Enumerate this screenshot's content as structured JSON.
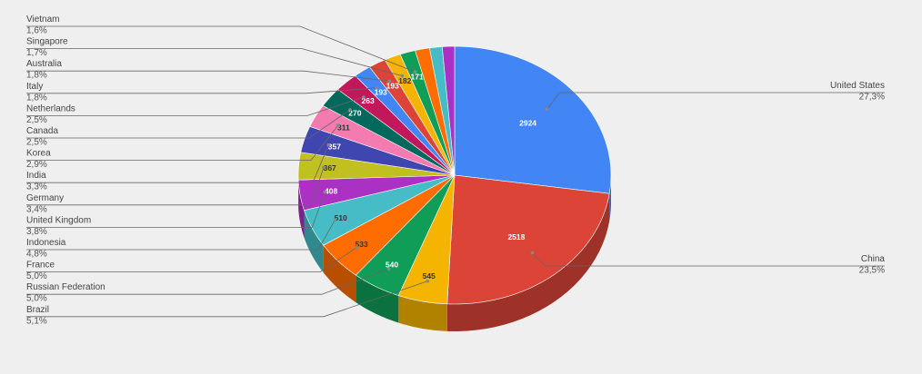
{
  "chart_data": {
    "type": "pie",
    "style": "3d-tilted",
    "legend": "none",
    "slices": [
      {
        "label": "United States",
        "value": 2924,
        "percent": "27,3%",
        "color": "#4285f4",
        "value_text_color": "#ffffff"
      },
      {
        "label": "China",
        "value": 2518,
        "percent": "23,5%",
        "color": "#db4437",
        "value_text_color": "#ffffff"
      },
      {
        "label": "Brazil",
        "value": 545,
        "percent": "5,1%",
        "color": "#f4b400",
        "value_text_color": "#333333"
      },
      {
        "label": "Russian Federation",
        "value": 540,
        "percent": "5,0%",
        "color": "#0f9d58",
        "value_text_color": "#ffffff"
      },
      {
        "label": "France",
        "value": 533,
        "percent": "5,0%",
        "color": "#ff6d00",
        "value_text_color": "#333333"
      },
      {
        "label": "Indonesia",
        "value": 510,
        "percent": "4,8%",
        "color": "#46bdc6",
        "value_text_color": "#333333"
      },
      {
        "label": "United Kingdom",
        "value": 408,
        "percent": "3,8%",
        "color": "#ab30c4",
        "value_text_color": "#ffffff"
      },
      {
        "label": "Germany",
        "value": 367,
        "percent": "3,4%",
        "color": "#c0c020",
        "value_text_color": "#333333"
      },
      {
        "label": "India",
        "value": 357,
        "percent": "3,3%",
        "color": "#3f46b0",
        "value_text_color": "#ffffff"
      },
      {
        "label": "Korea",
        "value": 311,
        "percent": "2,9%",
        "color": "#f47bb0",
        "value_text_color": "#333333"
      },
      {
        "label": "Canada",
        "value": 270,
        "percent": "2,5%",
        "color": "#00695c",
        "value_text_color": "#ffffff"
      },
      {
        "label": "Netherlands",
        "value": 263,
        "percent": "2,5%",
        "color": "#c2185b",
        "value_text_color": "#ffffff"
      },
      {
        "label": "Italy",
        "value": 193,
        "percent": "1,8%",
        "color": "#4285f4",
        "value_text_color": "#ffffff"
      },
      {
        "label": "Australia",
        "value": 193,
        "percent": "1,8%",
        "color": "#db4437",
        "value_text_color": "#ffffff"
      },
      {
        "label": "Singapore",
        "value": 182,
        "percent": "1,7%",
        "color": "#f4b400",
        "value_text_color": "#333333"
      },
      {
        "label": "Vietnam",
        "value": 171,
        "percent": "1,6%",
        "color": "#0f9d58",
        "value_text_color": "#ffffff"
      },
      {
        "label": "",
        "value": 160,
        "color": "#ff6d00",
        "value_text_color": "#333333"
      },
      {
        "label": "",
        "value": 140,
        "color": "#46bdc6",
        "value_text_color": "#333333"
      },
      {
        "label": "",
        "value": 136,
        "color": "#ab30c4",
        "value_text_color": "#ffffff"
      }
    ]
  }
}
